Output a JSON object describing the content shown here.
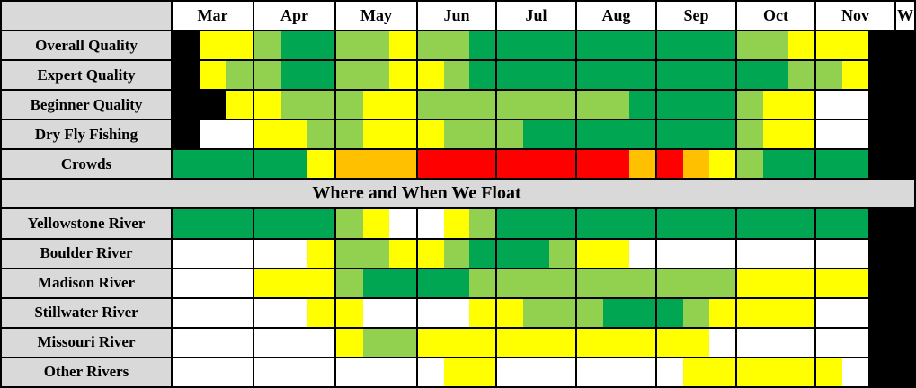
{
  "chart_data": {
    "type": "heatmap",
    "title": "",
    "section_title": "Where and When We Float",
    "months": [
      "Mar",
      "Apr",
      "May",
      "Jun",
      "Jul",
      "Aug",
      "Sep",
      "Oct",
      "Nov"
    ],
    "partial_last_column_label": "W",
    "cells_per_month": 3,
    "legend_note": "cell codes: K=black/closed, W=white/none, Y=yellow/fair, L=light-green/good, G=dark-green/excellent, O=orange/heavy, R=red/heaviest",
    "palette": {
      "K": "#000000",
      "W": "#FFFFFF",
      "Y": "#FFFF00",
      "L": "#92D050",
      "G": "#00A651",
      "O": "#FFC000",
      "R": "#FF0000"
    },
    "label_bg": "#D9D9D9",
    "rows": [
      {
        "label": "Overall Quality",
        "cells": [
          "KYY",
          "LGG",
          "LLY",
          "LLG",
          "GGG",
          "GGG",
          "GGG",
          "LLY",
          "YYK"
        ],
        "w": "K"
      },
      {
        "label": "Expert Quality",
        "cells": [
          "KYL",
          "LGG",
          "LLY",
          "YLG",
          "GGG",
          "GGG",
          "GGG",
          "GGL",
          "LYK"
        ],
        "w": "K"
      },
      {
        "label": "Beginner Quality",
        "cells": [
          "KKY",
          "YLL",
          "LYY",
          "LLL",
          "LLL",
          "LLG",
          "GGG",
          "LYY",
          "WWK"
        ],
        "w": "K"
      },
      {
        "label": "Dry Fly Fishing",
        "cells": [
          "KWW",
          "YYL",
          "LYY",
          "YLL",
          "LGG",
          "GGG",
          "GGG",
          "LYY",
          "WWK"
        ],
        "w": "K"
      },
      {
        "label": "Crowds",
        "cells": [
          "GGG",
          "GGY",
          "OOO",
          "RRR",
          "RRR",
          "RRO",
          "ROY",
          "LGG",
          "GGK"
        ],
        "w": "K"
      },
      {
        "section": true,
        "label": "Where and When We Float"
      },
      {
        "label": "Yellowstone River",
        "cells": [
          "GGG",
          "GGG",
          "LYW",
          "WYL",
          "GGG",
          "GGG",
          "GGG",
          "GGG",
          "GGK"
        ],
        "w": "K"
      },
      {
        "label": "Boulder River",
        "cells": [
          "WWW",
          "WWY",
          "LLY",
          "YLG",
          "GGL",
          "YYW",
          "WWW",
          "WWW",
          "WWK"
        ],
        "w": "K"
      },
      {
        "label": "Madison River",
        "cells": [
          "WWW",
          "YYY",
          "LGG",
          "GGL",
          "LLL",
          "LLL",
          "LLL",
          "YYY",
          "YYK"
        ],
        "w": "K"
      },
      {
        "label": "Stillwater River",
        "cells": [
          "WWW",
          "WWY",
          "YWW",
          "WWY",
          "YLL",
          "LGG",
          "GLY",
          "YYY",
          "WWK"
        ],
        "w": "K"
      },
      {
        "label": "Missouri River",
        "cells": [
          "WWW",
          "WWW",
          "YLL",
          "YYY",
          "YYY",
          "YYY",
          "YYW",
          "WWW",
          "WWK"
        ],
        "w": "K"
      },
      {
        "label": "Other Rivers",
        "cells": [
          "WWW",
          "WWW",
          "WWW",
          "WYY",
          "WWW",
          "WWW",
          "WYY",
          "YYY",
          "YWK"
        ],
        "w": "K"
      }
    ]
  }
}
